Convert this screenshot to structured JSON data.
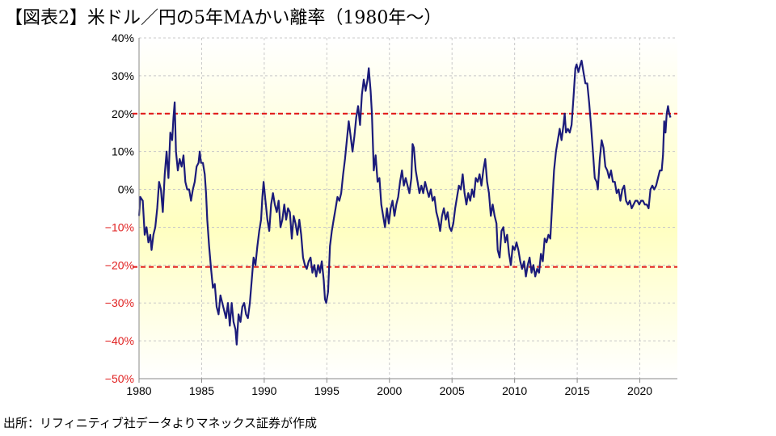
{
  "title": "【図表2】米ドル／円の5年MAかい離率（1980年～）",
  "source": "出所：リフィニティブ社データよりマネックス証券が作成",
  "colors": {
    "line": "#1b1b7a",
    "refline": "#e01414",
    "negative_tick": "#e02020",
    "grid": "#c8c8c8",
    "band_inner": "#ffffc0",
    "band_outer": "#ffffff"
  },
  "chart_data": {
    "type": "line",
    "title": "",
    "xlabel": "",
    "ylabel": "",
    "xlim": [
      1980,
      2023
    ],
    "ylim": [
      -50,
      40
    ],
    "unit": "%",
    "grid": true,
    "legend": "none",
    "x_ticks": [
      "1980",
      "1985",
      "1990",
      "1995",
      "2000",
      "2005",
      "2010",
      "2015",
      "2020"
    ],
    "y_ticks": [
      "40%",
      "30%",
      "20%",
      "10%",
      "0%",
      "-10%",
      "-20%",
      "-30%",
      "-40%",
      "-50%"
    ],
    "reference_lines": [
      20,
      -20.5
    ],
    "series": [
      {
        "values": [
          [
            1980.0,
            -7
          ],
          [
            1980.1,
            -2
          ],
          [
            1980.3,
            -3
          ],
          [
            1980.45,
            -12
          ],
          [
            1980.6,
            -10
          ],
          [
            1980.75,
            -14
          ],
          [
            1980.9,
            -12
          ],
          [
            1981.0,
            -16
          ],
          [
            1981.15,
            -12
          ],
          [
            1981.3,
            -10
          ],
          [
            1981.45,
            -5
          ],
          [
            1981.6,
            2
          ],
          [
            1981.75,
            0
          ],
          [
            1981.9,
            -6
          ],
          [
            1982.05,
            4
          ],
          [
            1982.2,
            10
          ],
          [
            1982.35,
            3
          ],
          [
            1982.5,
            15
          ],
          [
            1982.65,
            13
          ],
          [
            1982.75,
            19
          ],
          [
            1982.85,
            23
          ],
          [
            1982.95,
            10
          ],
          [
            1983.1,
            5
          ],
          [
            1983.25,
            8
          ],
          [
            1983.4,
            6
          ],
          [
            1983.55,
            9
          ],
          [
            1983.7,
            2
          ],
          [
            1983.85,
            0
          ],
          [
            1984.0,
            0
          ],
          [
            1984.15,
            -3
          ],
          [
            1984.3,
            0
          ],
          [
            1984.45,
            2
          ],
          [
            1984.6,
            6
          ],
          [
            1984.75,
            7
          ],
          [
            1984.85,
            10
          ],
          [
            1984.95,
            7
          ],
          [
            1985.1,
            7
          ],
          [
            1985.25,
            4
          ],
          [
            1985.35,
            -1
          ],
          [
            1985.45,
            -8
          ],
          [
            1985.6,
            -15
          ],
          [
            1985.75,
            -21
          ],
          [
            1985.9,
            -26
          ],
          [
            1986.05,
            -25
          ],
          [
            1986.2,
            -31
          ],
          [
            1986.35,
            -33
          ],
          [
            1986.5,
            -28
          ],
          [
            1986.65,
            -30
          ],
          [
            1986.8,
            -32
          ],
          [
            1986.95,
            -34
          ],
          [
            1987.1,
            -30
          ],
          [
            1987.25,
            -36
          ],
          [
            1987.4,
            -30
          ],
          [
            1987.55,
            -35
          ],
          [
            1987.7,
            -37
          ],
          [
            1987.8,
            -41
          ],
          [
            1987.95,
            -33
          ],
          [
            1988.1,
            -35
          ],
          [
            1988.25,
            -31
          ],
          [
            1988.4,
            -30
          ],
          [
            1988.55,
            -33
          ],
          [
            1988.7,
            -34
          ],
          [
            1988.85,
            -30
          ],
          [
            1989.0,
            -24
          ],
          [
            1989.15,
            -18
          ],
          [
            1989.3,
            -20
          ],
          [
            1989.45,
            -15
          ],
          [
            1989.6,
            -11
          ],
          [
            1989.75,
            -8
          ],
          [
            1989.85,
            -2
          ],
          [
            1989.95,
            2
          ],
          [
            1990.1,
            -3
          ],
          [
            1990.25,
            -8
          ],
          [
            1990.4,
            -11
          ],
          [
            1990.55,
            -4
          ],
          [
            1990.7,
            -1
          ],
          [
            1990.85,
            -4
          ],
          [
            1991.0,
            -6
          ],
          [
            1991.15,
            -3
          ],
          [
            1991.3,
            -10
          ],
          [
            1991.45,
            -8
          ],
          [
            1991.6,
            -4
          ],
          [
            1991.75,
            -8
          ],
          [
            1991.9,
            -5
          ],
          [
            1992.05,
            -6
          ],
          [
            1992.2,
            -13
          ],
          [
            1992.35,
            -7
          ],
          [
            1992.5,
            -9
          ],
          [
            1992.65,
            -12
          ],
          [
            1992.8,
            -8
          ],
          [
            1992.95,
            -12
          ],
          [
            1993.1,
            -18
          ],
          [
            1993.25,
            -20
          ],
          [
            1993.4,
            -21
          ],
          [
            1993.55,
            -19
          ],
          [
            1993.7,
            -18
          ],
          [
            1993.85,
            -22
          ],
          [
            1994.0,
            -20
          ],
          [
            1994.15,
            -23
          ],
          [
            1994.3,
            -20
          ],
          [
            1994.45,
            -22
          ],
          [
            1994.6,
            -19
          ],
          [
            1994.75,
            -24
          ],
          [
            1994.85,
            -29
          ],
          [
            1994.95,
            -30
          ],
          [
            1995.1,
            -27
          ],
          [
            1995.25,
            -15
          ],
          [
            1995.4,
            -11
          ],
          [
            1995.55,
            -8
          ],
          [
            1995.7,
            -5
          ],
          [
            1995.85,
            -2
          ],
          [
            1996.0,
            -3
          ],
          [
            1996.15,
            -1
          ],
          [
            1996.3,
            4
          ],
          [
            1996.45,
            8
          ],
          [
            1996.6,
            13
          ],
          [
            1996.75,
            18
          ],
          [
            1996.9,
            14
          ],
          [
            1997.05,
            10
          ],
          [
            1997.2,
            14
          ],
          [
            1997.35,
            19
          ],
          [
            1997.5,
            22
          ],
          [
            1997.65,
            17
          ],
          [
            1997.8,
            25
          ],
          [
            1997.95,
            29
          ],
          [
            1998.1,
            26
          ],
          [
            1998.25,
            29
          ],
          [
            1998.35,
            32
          ],
          [
            1998.5,
            26
          ],
          [
            1998.6,
            20
          ],
          [
            1998.75,
            5
          ],
          [
            1998.9,
            9
          ],
          [
            1999.05,
            2
          ],
          [
            1999.2,
            3
          ],
          [
            1999.35,
            -4
          ],
          [
            1999.5,
            -7
          ],
          [
            1999.65,
            -10
          ],
          [
            1999.8,
            -5
          ],
          [
            1999.95,
            -9
          ],
          [
            2000.1,
            -5
          ],
          [
            2000.25,
            -3
          ],
          [
            2000.4,
            -7
          ],
          [
            2000.55,
            -4
          ],
          [
            2000.7,
            -2
          ],
          [
            2000.85,
            2
          ],
          [
            2001.0,
            5
          ],
          [
            2001.15,
            1
          ],
          [
            2001.3,
            3
          ],
          [
            2001.45,
            1
          ],
          [
            2001.6,
            -1
          ],
          [
            2001.75,
            3
          ],
          [
            2001.85,
            12
          ],
          [
            2001.95,
            11
          ],
          [
            2002.1,
            5
          ],
          [
            2002.25,
            2
          ],
          [
            2002.4,
            -1
          ],
          [
            2002.55,
            1
          ],
          [
            2002.7,
            -1
          ],
          [
            2002.85,
            2
          ],
          [
            2003.0,
            0
          ],
          [
            2003.15,
            -2
          ],
          [
            2003.3,
            0
          ],
          [
            2003.45,
            -3
          ],
          [
            2003.6,
            -2
          ],
          [
            2003.75,
            -6
          ],
          [
            2003.9,
            -8
          ],
          [
            2004.05,
            -11
          ],
          [
            2004.2,
            -7
          ],
          [
            2004.35,
            -5
          ],
          [
            2004.5,
            -8
          ],
          [
            2004.65,
            -6
          ],
          [
            2004.8,
            -10
          ],
          [
            2004.95,
            -11
          ],
          [
            2005.1,
            -9
          ],
          [
            2005.25,
            -5
          ],
          [
            2005.4,
            -2
          ],
          [
            2005.55,
            1
          ],
          [
            2005.7,
            0
          ],
          [
            2005.85,
            4
          ],
          [
            2006.0,
            -1
          ],
          [
            2006.15,
            -4
          ],
          [
            2006.3,
            -1
          ],
          [
            2006.45,
            -3
          ],
          [
            2006.6,
            0
          ],
          [
            2006.75,
            -2
          ],
          [
            2006.9,
            3
          ],
          [
            2007.05,
            2
          ],
          [
            2007.2,
            4
          ],
          [
            2007.35,
            1
          ],
          [
            2007.5,
            5
          ],
          [
            2007.65,
            8
          ],
          [
            2007.8,
            2
          ],
          [
            2007.95,
            -1
          ],
          [
            2008.1,
            -7
          ],
          [
            2008.25,
            -4
          ],
          [
            2008.4,
            -7
          ],
          [
            2008.55,
            -9
          ],
          [
            2008.65,
            -16
          ],
          [
            2008.8,
            -18
          ],
          [
            2008.95,
            -11
          ],
          [
            2009.1,
            -10
          ],
          [
            2009.25,
            -14
          ],
          [
            2009.4,
            -12
          ],
          [
            2009.55,
            -17
          ],
          [
            2009.7,
            -20
          ],
          [
            2009.85,
            -15
          ],
          [
            2010.0,
            -16
          ],
          [
            2010.15,
            -14
          ],
          [
            2010.3,
            -16
          ],
          [
            2010.45,
            -19
          ],
          [
            2010.6,
            -21
          ],
          [
            2010.75,
            -19
          ],
          [
            2010.9,
            -23
          ],
          [
            2011.05,
            -20
          ],
          [
            2011.2,
            -18
          ],
          [
            2011.35,
            -22
          ],
          [
            2011.5,
            -20
          ],
          [
            2011.65,
            -23
          ],
          [
            2011.8,
            -21
          ],
          [
            2011.95,
            -22
          ],
          [
            2012.1,
            -17
          ],
          [
            2012.25,
            -19
          ],
          [
            2012.4,
            -13
          ],
          [
            2012.55,
            -14
          ],
          [
            2012.7,
            -12
          ],
          [
            2012.85,
            -13
          ],
          [
            2013.0,
            -4
          ],
          [
            2013.15,
            5
          ],
          [
            2013.3,
            10
          ],
          [
            2013.45,
            13
          ],
          [
            2013.6,
            16
          ],
          [
            2013.75,
            13
          ],
          [
            2013.9,
            17
          ],
          [
            2014.0,
            20
          ],
          [
            2014.1,
            15
          ],
          [
            2014.25,
            16
          ],
          [
            2014.4,
            15
          ],
          [
            2014.55,
            17
          ],
          [
            2014.7,
            24
          ],
          [
            2014.85,
            32
          ],
          [
            2014.95,
            33
          ],
          [
            2015.1,
            31
          ],
          [
            2015.25,
            33
          ],
          [
            2015.35,
            34
          ],
          [
            2015.5,
            31
          ],
          [
            2015.65,
            28
          ],
          [
            2015.8,
            28
          ],
          [
            2015.95,
            23
          ],
          [
            2016.1,
            17
          ],
          [
            2016.25,
            10
          ],
          [
            2016.4,
            3
          ],
          [
            2016.55,
            2
          ],
          [
            2016.65,
            0
          ],
          [
            2016.8,
            8
          ],
          [
            2016.95,
            13
          ],
          [
            2017.1,
            11
          ],
          [
            2017.25,
            6
          ],
          [
            2017.4,
            5
          ],
          [
            2017.55,
            3
          ],
          [
            2017.7,
            5
          ],
          [
            2017.85,
            2
          ],
          [
            2018.0,
            2
          ],
          [
            2018.15,
            -1
          ],
          [
            2018.3,
            0
          ],
          [
            2018.45,
            -3
          ],
          [
            2018.6,
            0
          ],
          [
            2018.75,
            1
          ],
          [
            2018.9,
            -3
          ],
          [
            2019.05,
            -4
          ],
          [
            2019.2,
            -3
          ],
          [
            2019.35,
            -5
          ],
          [
            2019.5,
            -4
          ],
          [
            2019.65,
            -3
          ],
          [
            2019.8,
            -3
          ],
          [
            2019.95,
            -4
          ],
          [
            2020.1,
            -3
          ],
          [
            2020.25,
            -3
          ],
          [
            2020.4,
            -4
          ],
          [
            2020.55,
            -4
          ],
          [
            2020.7,
            -5
          ],
          [
            2020.85,
            0
          ],
          [
            2021.0,
            1
          ],
          [
            2021.15,
            0
          ],
          [
            2021.3,
            1
          ],
          [
            2021.45,
            3
          ],
          [
            2021.6,
            5
          ],
          [
            2021.75,
            5
          ],
          [
            2021.85,
            9
          ],
          [
            2021.95,
            18
          ],
          [
            2022.05,
            15
          ],
          [
            2022.15,
            20
          ],
          [
            2022.25,
            22
          ],
          [
            2022.35,
            20
          ],
          [
            2022.45,
            19
          ]
        ]
      }
    ]
  }
}
